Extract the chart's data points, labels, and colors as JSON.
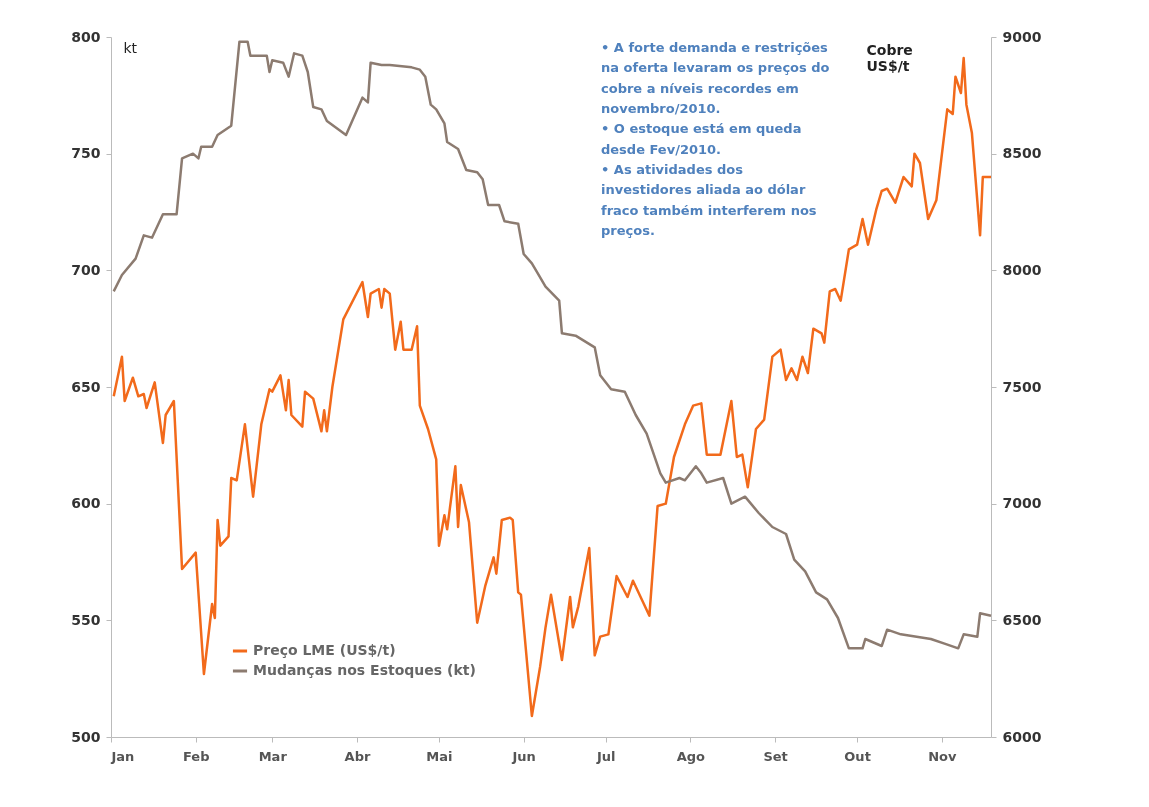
{
  "chart_data": {
    "type": "line",
    "ylabel": "kt",
    "y2label": "Cobre US$/t",
    "annotations": [
      "• A forte demanda e restrições na oferta levaram os preços do cobre a níveis recordes em novembro/2010.",
      "• O estoque está em queda desde Fev/2010.",
      "• As atividades dos investidores aliada ao dólar fraco também interferem nos preços."
    ],
    "xlim": [
      "2010-01-01",
      "2010-11-19"
    ],
    "xticks": [
      {
        "value": "2010-01",
        "label": "Jan"
      },
      {
        "value": "2010-02",
        "label": "Feb"
      },
      {
        "value": "2010-03",
        "label": "Mar"
      },
      {
        "value": "2010-04",
        "label": "Abr"
      },
      {
        "value": "2010-05",
        "label": "Mai"
      },
      {
        "value": "2010-06",
        "label": "Jun"
      },
      {
        "value": "2010-07",
        "label": "Jul"
      },
      {
        "value": "2010-08",
        "label": "Ago"
      },
      {
        "value": "2010-09",
        "label": "Set"
      },
      {
        "value": "2010-10",
        "label": "Out"
      },
      {
        "value": "2010-11",
        "label": "Nov"
      }
    ],
    "ylim": [
      500,
      800
    ],
    "yticks": [
      500,
      550,
      600,
      650,
      700,
      750,
      800
    ],
    "y2lim": [
      6000,
      9000
    ],
    "y2ticks": [
      6000,
      6500,
      7000,
      7500,
      8000,
      8500,
      9000
    ],
    "legend": "bottom left",
    "grid": false,
    "line_style": "solid",
    "marker": "none",
    "series": [
      {
        "name": "Preço LME (US$/t)",
        "color": "#f26a1b",
        "axis": "y2",
        "x": [
          "2010-01-02",
          "2010-01-05",
          "2010-01-06",
          "2010-01-09",
          "2010-01-11",
          "2010-01-13",
          "2010-01-14",
          "2010-01-17",
          "2010-01-20",
          "2010-01-21",
          "2010-01-24",
          "2010-01-27",
          "2010-02-01",
          "2010-02-04",
          "2010-02-07",
          "2010-02-08",
          "2010-02-09",
          "2010-02-10",
          "2010-02-13",
          "2010-02-14",
          "2010-02-16",
          "2010-02-19",
          "2010-02-22",
          "2010-02-25",
          "2010-02-28",
          "2010-03-01",
          "2010-03-04",
          "2010-03-06",
          "2010-03-07",
          "2010-03-08",
          "2010-03-12",
          "2010-03-13",
          "2010-03-16",
          "2010-03-19",
          "2010-03-20",
          "2010-03-21",
          "2010-03-23",
          "2010-03-27",
          "2010-04-03",
          "2010-04-05",
          "2010-04-06",
          "2010-04-09",
          "2010-04-10",
          "2010-04-11",
          "2010-04-13",
          "2010-04-15",
          "2010-04-17",
          "2010-04-18",
          "2010-04-21",
          "2010-04-23",
          "2010-04-24",
          "2010-04-27",
          "2010-04-30",
          "2010-05-01",
          "2010-05-03",
          "2010-05-04",
          "2010-05-07",
          "2010-05-08",
          "2010-05-09",
          "2010-05-12",
          "2010-05-15",
          "2010-05-18",
          "2010-05-21",
          "2010-05-22",
          "2010-05-24",
          "2010-05-27",
          "2010-05-28",
          "2010-05-30",
          "2010-05-31",
          "2010-06-04",
          "2010-06-07",
          "2010-06-09",
          "2010-06-11",
          "2010-06-15",
          "2010-06-18",
          "2010-06-19",
          "2010-06-21",
          "2010-06-25",
          "2010-06-27",
          "2010-06-29",
          "2010-07-02",
          "2010-07-05",
          "2010-07-09",
          "2010-07-11",
          "2010-07-17",
          "2010-07-20",
          "2010-07-23",
          "2010-07-26",
          "2010-07-30",
          "2010-08-02",
          "2010-08-05",
          "2010-08-07",
          "2010-08-12",
          "2010-08-16",
          "2010-08-18",
          "2010-08-20",
          "2010-08-22",
          "2010-08-25",
          "2010-08-28",
          "2010-08-31",
          "2010-09-03",
          "2010-09-05",
          "2010-09-07",
          "2010-09-09",
          "2010-09-11",
          "2010-09-13",
          "2010-09-15",
          "2010-09-18",
          "2010-09-19",
          "2010-09-21",
          "2010-09-23",
          "2010-09-25",
          "2010-09-28",
          "2010-10-01",
          "2010-10-03",
          "2010-10-05",
          "2010-10-08",
          "2010-10-10",
          "2010-10-12",
          "2010-10-15",
          "2010-10-18",
          "2010-10-21",
          "2010-10-22",
          "2010-10-24",
          "2010-10-27",
          "2010-10-30",
          "2010-11-03",
          "2010-11-05",
          "2010-11-06",
          "2010-11-08",
          "2010-11-09",
          "2010-11-10",
          "2010-11-12",
          "2010-11-15",
          "2010-11-16",
          "2010-11-19"
        ],
        "values": [
          7460,
          7630,
          7440,
          7540,
          7460,
          7470,
          7410,
          7520,
          7260,
          7380,
          7440,
          6720,
          6790,
          6270,
          6570,
          6510,
          6930,
          6820,
          6860,
          7110,
          7100,
          7340,
          7030,
          7340,
          7490,
          7480,
          7550,
          7400,
          7530,
          7380,
          7330,
          7480,
          7450,
          7310,
          7400,
          7310,
          7500,
          7790,
          7950,
          7800,
          7900,
          7920,
          7840,
          7920,
          7900,
          7660,
          7780,
          7660,
          7660,
          7760,
          7420,
          7320,
          7190,
          6820,
          6950,
          6890,
          7160,
          6900,
          7080,
          6920,
          6490,
          6650,
          6770,
          6700,
          6930,
          6940,
          6930,
          6620,
          6610,
          6090,
          6300,
          6470,
          6610,
          6330,
          6600,
          6470,
          6560,
          6810,
          6350,
          6430,
          6440,
          6690,
          6600,
          6670,
          6520,
          6990,
          7000,
          7200,
          7340,
          7420,
          7430,
          7210,
          7210,
          7440,
          7200,
          7210,
          7070,
          7320,
          7360,
          7630,
          7660,
          7530,
          7580,
          7530,
          7630,
          7560,
          7750,
          7730,
          7690,
          7910,
          7920,
          7870,
          8090,
          8110,
          8220,
          8110,
          8260,
          8340,
          8350,
          8290,
          8400,
          8360,
          8500,
          8460,
          8220,
          8300,
          8690,
          8670,
          8830,
          8760,
          8910,
          8710,
          8590,
          8150,
          8400,
          8400
        ]
      },
      {
        "name": "Mudanças nos Estoques (kt)",
        "color": "#8c7b70",
        "x": [
          "2010-01-02",
          "2010-01-05",
          "2010-01-10",
          "2010-01-13",
          "2010-01-16",
          "2010-01-20",
          "2010-01-25",
          "2010-01-27",
          "2010-01-31",
          "2010-02-02",
          "2010-02-03",
          "2010-02-07",
          "2010-02-09",
          "2010-02-14",
          "2010-02-17",
          "2010-02-20",
          "2010-02-21",
          "2010-02-27",
          "2010-02-28",
          "2010-03-01",
          "2010-03-05",
          "2010-03-07",
          "2010-03-09",
          "2010-03-12",
          "2010-03-14",
          "2010-03-16",
          "2010-03-19",
          "2010-03-21",
          "2010-03-28",
          "2010-04-03",
          "2010-04-05",
          "2010-04-06",
          "2010-04-10",
          "2010-04-13",
          "2010-04-21",
          "2010-04-24",
          "2010-04-26",
          "2010-04-28",
          "2010-04-30",
          "2010-05-03",
          "2010-05-04",
          "2010-05-08",
          "2010-05-11",
          "2010-05-15",
          "2010-05-17",
          "2010-05-19",
          "2010-05-23",
          "2010-05-25",
          "2010-05-30",
          "2010-06-01",
          "2010-06-04",
          "2010-06-06",
          "2010-06-09",
          "2010-06-14",
          "2010-06-15",
          "2010-06-20",
          "2010-06-27",
          "2010-06-29",
          "2010-07-03",
          "2010-07-08",
          "2010-07-12",
          "2010-07-16",
          "2010-07-21",
          "2010-07-23",
          "2010-07-28",
          "2010-07-30",
          "2010-08-03",
          "2010-08-05",
          "2010-08-07",
          "2010-08-13",
          "2010-08-16",
          "2010-08-21",
          "2010-08-26",
          "2010-08-31",
          "2010-09-05",
          "2010-09-08",
          "2010-09-12",
          "2010-09-16",
          "2010-09-20",
          "2010-09-24",
          "2010-09-28",
          "2010-10-03",
          "2010-10-04",
          "2010-10-10",
          "2010-10-12",
          "2010-10-17",
          "2010-10-28",
          "2010-11-02",
          "2010-11-07",
          "2010-11-09",
          "2010-11-14",
          "2010-11-15",
          "2010-11-19"
        ],
        "values": [
          691,
          698,
          705,
          715,
          714,
          724,
          724,
          748,
          750,
          748,
          753,
          753,
          758,
          762,
          798,
          798,
          792,
          792,
          785,
          790,
          789,
          783,
          793,
          792,
          785,
          770,
          769,
          764,
          758,
          774,
          772,
          789,
          788,
          788,
          787,
          786,
          783,
          771,
          769,
          763,
          755,
          752,
          743,
          742,
          739,
          728,
          728,
          721,
          720,
          707,
          703,
          699,
          693,
          687,
          673,
          672,
          667,
          655,
          649,
          648,
          638,
          630,
          613,
          609,
          611,
          610,
          616,
          613,
          609,
          611,
          600,
          603,
          596,
          590,
          587,
          576,
          571,
          562,
          559,
          551,
          538,
          538,
          542,
          539,
          546,
          544,
          542,
          540,
          538,
          544,
          543,
          553,
          552
        ]
      }
    ]
  }
}
